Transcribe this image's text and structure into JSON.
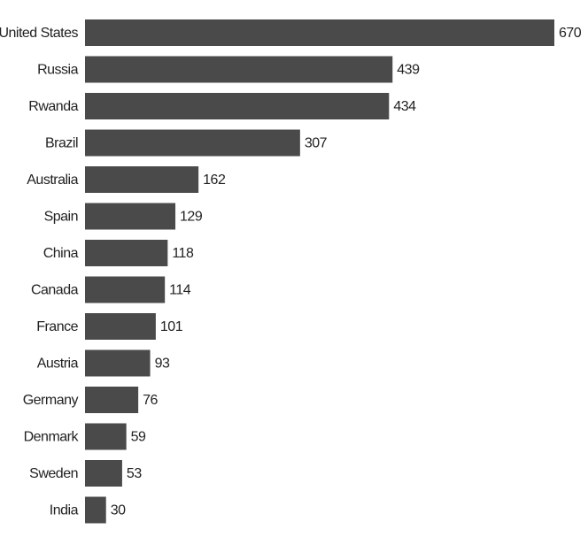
{
  "chart_data": {
    "type": "bar",
    "orientation": "horizontal",
    "color": "#4a4a4a",
    "categories": [
      "United States",
      "Russia",
      "Rwanda",
      "Brazil",
      "Australia",
      "Spain",
      "China",
      "Canada",
      "France",
      "Austria",
      "Germany",
      "Denmark",
      "Sweden",
      "India"
    ],
    "values": [
      670,
      439,
      434,
      307,
      162,
      129,
      118,
      114,
      101,
      93,
      76,
      59,
      53,
      30
    ]
  }
}
